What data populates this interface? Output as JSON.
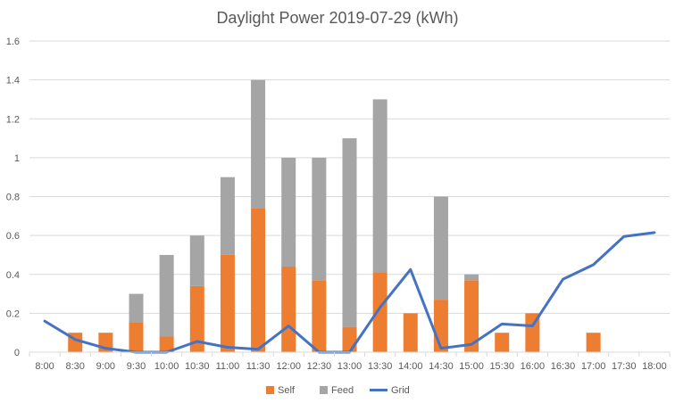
{
  "chart_data": {
    "type": "bar",
    "stacked": true,
    "title": "Daylight Power 2019-07-29 (kWh)",
    "xlabel": "",
    "ylabel": "",
    "ylim": [
      0,
      1.6
    ],
    "yticks": [
      "0",
      "0.2",
      "0.4",
      "0.6",
      "0.8",
      "1",
      "1.2",
      "1.4",
      "1.6"
    ],
    "grid": true,
    "legend": "bottom",
    "categories": [
      "8:00",
      "8:30",
      "9:00",
      "9:30",
      "10:00",
      "10:30",
      "11:00",
      "11:30",
      "12:00",
      "12:30",
      "13:00",
      "13:30",
      "14:00",
      "14:30",
      "15:00",
      "15:30",
      "16:00",
      "16:30",
      "17:00",
      "17:30",
      "18:00"
    ],
    "series": [
      {
        "name": "Self",
        "kind": "bar",
        "color": "#ED7D31",
        "values": [
          0,
          0.1,
          0.1,
          0.155,
          0.08,
          0.34,
          0.5,
          0.74,
          0.44,
          0.37,
          0.13,
          0.41,
          0.2,
          0.27,
          0.37,
          0.1,
          0.2,
          0,
          0.1,
          0,
          0
        ]
      },
      {
        "name": "Feed",
        "kind": "bar",
        "color": "#A5A5A5",
        "values": [
          0,
          0,
          0,
          0.145,
          0.42,
          0.26,
          0.4,
          0.66,
          0.56,
          0.63,
          0.97,
          0.89,
          0,
          0.53,
          0.03,
          0,
          0,
          0,
          0,
          0,
          0
        ]
      },
      {
        "name": "Grid",
        "kind": "line",
        "color": "#4472C4",
        "values": [
          0.16,
          0.065,
          0.02,
          0,
          0,
          0.055,
          0.025,
          0.015,
          0.135,
          0,
          0,
          0.23,
          0.425,
          0.02,
          0.04,
          0.145,
          0.135,
          0.375,
          0.45,
          0.595,
          0.615
        ]
      }
    ]
  }
}
